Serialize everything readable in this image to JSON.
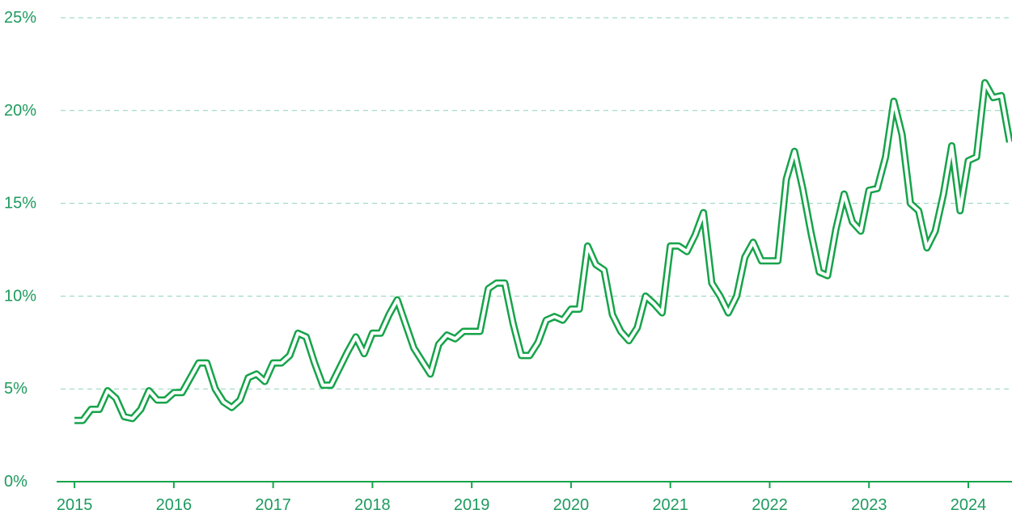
{
  "chart_data": {
    "type": "line",
    "x": [
      2015,
      2015.083,
      2015.167,
      2015.25,
      2015.333,
      2015.417,
      2015.5,
      2015.583,
      2015.667,
      2015.75,
      2015.833,
      2015.917,
      2016,
      2016.083,
      2016.167,
      2016.25,
      2016.333,
      2016.417,
      2016.5,
      2016.583,
      2016.667,
      2016.75,
      2016.833,
      2016.917,
      2017,
      2017.083,
      2017.167,
      2017.25,
      2017.333,
      2017.417,
      2017.5,
      2017.583,
      2017.667,
      2017.75,
      2017.833,
      2017.917,
      2018,
      2018.083,
      2018.167,
      2018.25,
      2018.333,
      2018.417,
      2018.5,
      2018.583,
      2018.667,
      2018.75,
      2018.833,
      2018.917,
      2019,
      2019.083,
      2019.167,
      2019.25,
      2019.333,
      2019.417,
      2019.5,
      2019.583,
      2019.667,
      2019.75,
      2019.833,
      2019.917,
      2020,
      2020.083,
      2020.167,
      2020.25,
      2020.333,
      2020.417,
      2020.5,
      2020.583,
      2020.667,
      2020.75,
      2020.833,
      2020.917,
      2021,
      2021.083,
      2021.167,
      2021.25,
      2021.333,
      2021.417,
      2021.5,
      2021.583,
      2021.667,
      2021.75,
      2021.833,
      2021.917,
      2022,
      2022.083,
      2022.167,
      2022.25,
      2022.333,
      2022.417,
      2022.5,
      2022.583,
      2022.667,
      2022.75,
      2022.833,
      2022.917,
      2023,
      2023.083,
      2023.167,
      2023.25,
      2023.333,
      2023.417,
      2023.5,
      2023.583,
      2023.667,
      2023.75,
      2023.833,
      2023.917,
      2024,
      2024.083,
      2024.167,
      2024.25,
      2024.333,
      2024.417
    ],
    "series": [
      {
        "color": "#16a34a",
        "values": [
          3.3,
          3.3,
          3.9,
          3.9,
          4.9,
          4.5,
          3.5,
          3.4,
          3.9,
          4.9,
          4.4,
          4.4,
          4.8,
          4.8,
          5.6,
          6.4,
          6.4,
          5.0,
          4.3,
          4.0,
          4.4,
          5.6,
          5.8,
          5.4,
          6.4,
          6.4,
          6.8,
          8.0,
          7.8,
          6.4,
          5.2,
          5.2,
          6.1,
          7.0,
          7.8,
          6.9,
          8.0,
          8.0,
          9.0,
          9.8,
          8.5,
          7.2,
          6.5,
          5.8,
          7.4,
          7.9,
          7.7,
          8.1,
          8.1,
          8.1,
          10.4,
          10.7,
          10.7,
          8.5,
          6.8,
          6.8,
          7.5,
          8.7,
          8.9,
          8.7,
          9.3,
          9.3,
          12.7,
          11.7,
          11.4,
          9.0,
          8.1,
          7.6,
          8.3,
          10.0,
          9.6,
          9.1,
          12.7,
          12.7,
          12.4,
          13.3,
          14.5,
          10.7,
          10.0,
          9.1,
          10.0,
          12.1,
          12.9,
          11.9,
          11.9,
          11.9,
          16.3,
          17.8,
          15.8,
          13.4,
          11.3,
          11.1,
          13.6,
          15.5,
          14.0,
          13.5,
          15.7,
          15.8,
          17.5,
          20.5,
          18.7,
          15.0,
          14.6,
          12.6,
          13.5,
          15.5,
          18.1,
          14.6,
          17.3,
          17.5,
          21.5,
          20.7,
          20.8,
          18.3
        ]
      }
    ],
    "xlim": [
      2014.82,
      2024.44
    ],
    "xticks": [
      2015,
      2016,
      2017,
      2018,
      2019,
      2020,
      2021,
      2022,
      2023,
      2024
    ],
    "ylim": [
      0,
      25
    ],
    "yticks": [
      {
        "value": 0,
        "label": "0%"
      },
      {
        "value": 5,
        "label": "5%"
      },
      {
        "value": 10,
        "label": "10%"
      },
      {
        "value": 15,
        "label": "15%"
      },
      {
        "value": 20,
        "label": "20%"
      },
      {
        "value": 25,
        "label": "25%"
      }
    ],
    "grid": true
  }
}
